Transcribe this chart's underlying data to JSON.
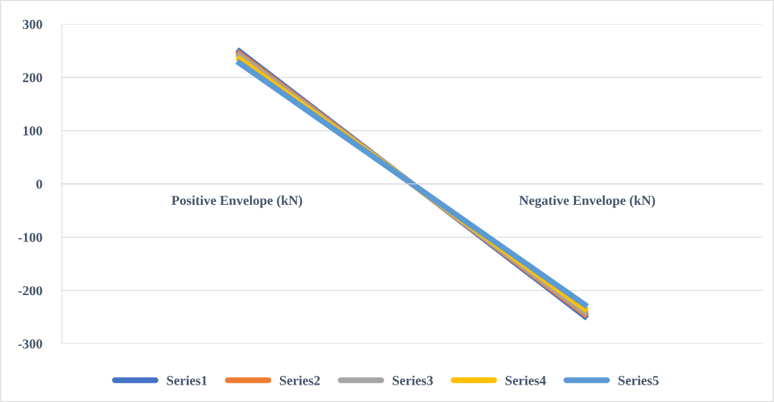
{
  "chart_data": {
    "type": "line",
    "categories": [
      "Positive Envelope (kN)",
      "Negative Envelope (kN)"
    ],
    "series": [
      {
        "name": "Series1",
        "color": "#4472c4",
        "values": [
          252,
          -252
        ]
      },
      {
        "name": "Series2",
        "color": "#ed7d31",
        "values": [
          248,
          -248
        ]
      },
      {
        "name": "Series3",
        "color": "#a5a5a5",
        "values": [
          244,
          -244
        ]
      },
      {
        "name": "Series4",
        "color": "#ffc000",
        "values": [
          238,
          -238
        ]
      },
      {
        "name": "Series5",
        "color": "#5b9bd5",
        "values": [
          230,
          -230
        ]
      }
    ],
    "ylim": [
      -300,
      300
    ],
    "yticks": [
      -300,
      -200,
      -100,
      0,
      100,
      200,
      300
    ],
    "grid": "y",
    "legend": "bottom",
    "marker": "none",
    "line_style": "solid"
  }
}
